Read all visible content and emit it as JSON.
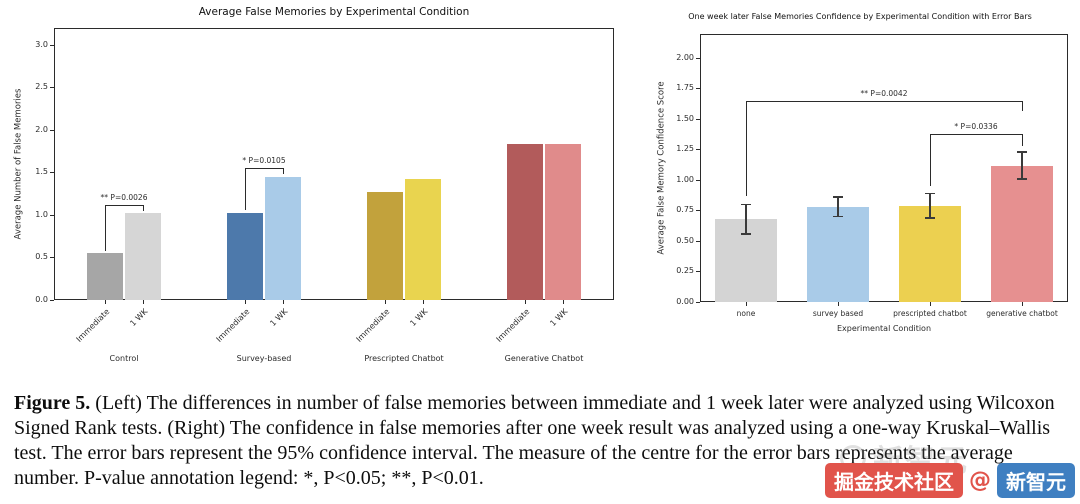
{
  "figure": {
    "caption_label": "Figure 5.",
    "caption_body": "(Left) The differences in number of false memories between immediate and 1 week later were analyzed using Wilcoxon Signed Rank tests. (Right) The confidence in false memories after one week result was analyzed using a one-way Kruskal–Wallis test. The error bars represent the 95% confidence interval. The measure of the centre for the error bars represents the average number. P-value annotation legend: *, P<0.05; **, P<0.01."
  },
  "watermark": {
    "ghost": "新智元",
    "badge_left": "掘金技术社区",
    "at": "@",
    "badge_right": "新智元"
  },
  "chart_data": [
    {
      "type": "bar",
      "title": "Average False Memories by Experimental Condition",
      "xlabel": "",
      "ylabel": "Average Number of False Memories",
      "ylim": [
        0,
        3.2
      ],
      "yticks": [
        "0.0",
        "0.5",
        "1.0",
        "1.5",
        "2.0",
        "2.5",
        "3.0"
      ],
      "bar_labels": [
        "Immediate",
        "1 WK"
      ],
      "legend_position": "none",
      "grid": false,
      "groups": [
        {
          "label": "Control",
          "values": [
            0.55,
            1.02
          ],
          "colors": [
            "#a6a6a6",
            "#d6d6d6"
          ],
          "annotation": {
            "text": "** P=0.0026",
            "y": 1.12,
            "leg1": 0.58,
            "leg2": 1.05
          }
        },
        {
          "label": "Survey-based",
          "values": [
            1.02,
            1.45
          ],
          "colors": [
            "#4d79ab",
            "#a9cbe8"
          ],
          "annotation": {
            "text": "* P=0.0105",
            "y": 1.55,
            "leg1": 1.06,
            "leg2": 1.48
          }
        },
        {
          "label": "Prescripted Chatbot",
          "values": [
            1.27,
            1.42
          ],
          "colors": [
            "#c2a23c",
            "#e9d44f"
          ],
          "annotation": null
        },
        {
          "label": "Generative Chatbot",
          "values": [
            1.84,
            1.84
          ],
          "colors": [
            "#b25b5b",
            "#e08b8b"
          ],
          "annotation": null
        }
      ]
    },
    {
      "type": "bar",
      "title": "One week later False Memories Confidence by Experimental Condition with Error Bars",
      "xlabel": "Experimental Condition",
      "ylabel": "Average False Memory Confidence Score",
      "ylim": [
        0,
        2.2
      ],
      "yticks": [
        "0.00",
        "0.25",
        "0.50",
        "0.75",
        "1.00",
        "1.25",
        "1.50",
        "1.75",
        "2.00"
      ],
      "categories": [
        "none",
        "survey based",
        "prescripted chatbot",
        "generative chatbot"
      ],
      "values": [
        0.68,
        0.78,
        0.79,
        1.12
      ],
      "errors": [
        0.12,
        0.08,
        0.1,
        0.11
      ],
      "colors": [
        "#d4d4d4",
        "#a9cbe8",
        "#ecd050",
        "#e69090"
      ],
      "error_bar_note": "95% confidence interval",
      "grid": false,
      "annotations": [
        {
          "text": "** P=0.0042",
          "from": 0,
          "to": 3,
          "y": 1.65,
          "leg1": 0.87,
          "leg2": 1.57
        },
        {
          "text": "* P=0.0336",
          "from": 2,
          "to": 3,
          "y": 1.38,
          "leg1": 0.95,
          "leg2": 1.28
        }
      ]
    }
  ]
}
